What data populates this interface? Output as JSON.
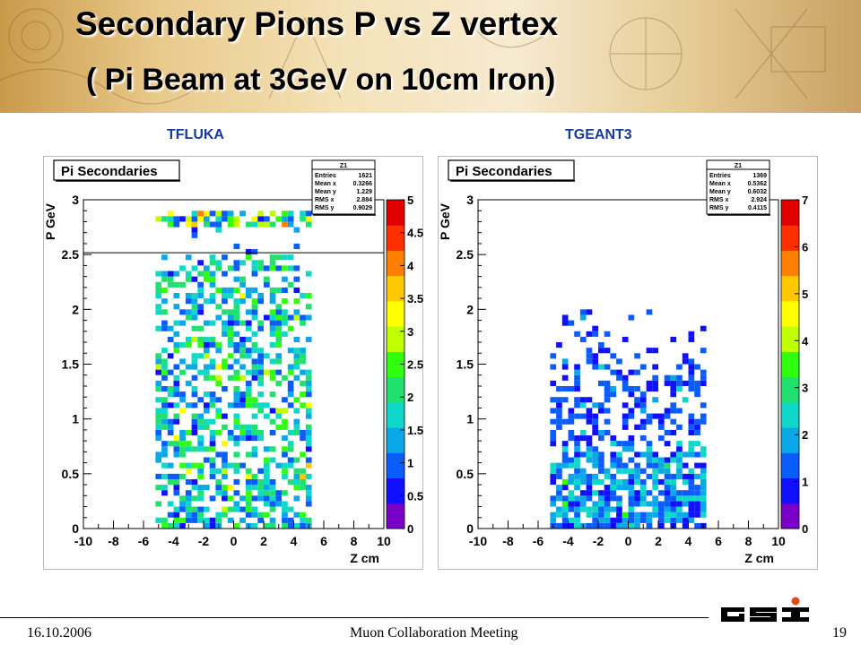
{
  "slide": {
    "title": "Secondary Pions  P vs Z vertex",
    "subtitle": "( Pi Beam at 3GeV on 10cm Iron)",
    "footer_date": "16.10.2006",
    "footer_center": "Muon Collaboration Meeting",
    "footer_page": "19",
    "logo_text": "GSI"
  },
  "chart_data": [
    {
      "type": "heatmap",
      "label": "TFLUKA",
      "title": "Pi Secondaries",
      "xlabel": "Z cm",
      "ylabel": "P GeV",
      "xlim": [
        -10,
        10
      ],
      "ylim": [
        0,
        3
      ],
      "x_ticks": [
        "-10",
        "-8",
        "-6",
        "-4",
        "-2",
        "0",
        "2",
        "4",
        "6",
        "8",
        "10"
      ],
      "y_ticks": [
        "0",
        "0.5",
        "1",
        "1.5",
        "2",
        "2.5",
        "3"
      ],
      "z_ticks": [
        "0",
        "0.5",
        "1",
        "1.5",
        "2",
        "2.5",
        "3",
        "3.5",
        "4",
        "4.5",
        "5"
      ],
      "zmax": 5,
      "stats": {
        "name": "Z1",
        "rows": [
          [
            "Entries",
            "1621"
          ],
          [
            "Mean x",
            "0.3266"
          ],
          [
            "Mean y",
            "1.229"
          ],
          [
            "RMS x",
            "2.884"
          ],
          [
            "RMS y",
            "0.9029"
          ]
        ]
      },
      "fill": {
        "xmin": -5,
        "xmax": 5,
        "ymax": 2.9,
        "band": [
          2.75,
          2.9
        ],
        "gap": [
          2.5,
          2.75
        ]
      }
    },
    {
      "type": "heatmap",
      "label": "TGEANT3",
      "title": "Pi Secondaries",
      "xlabel": "Z cm",
      "ylabel": "P GeV",
      "xlim": [
        -10,
        10
      ],
      "ylim": [
        0,
        3
      ],
      "x_ticks": [
        "-10",
        "-8",
        "-6",
        "-4",
        "-2",
        "0",
        "2",
        "4",
        "6",
        "8",
        "10"
      ],
      "y_ticks": [
        "0",
        "0.5",
        "1",
        "1.5",
        "2",
        "2.5",
        "3"
      ],
      "z_ticks": [
        "0",
        "1",
        "2",
        "3",
        "4",
        "5",
        "6",
        "7"
      ],
      "zmax": 7,
      "stats": {
        "name": "Z1",
        "rows": [
          [
            "Entries",
            "1369"
          ],
          [
            "Mean x",
            "0.5362"
          ],
          [
            "Mean y",
            "0.6032"
          ],
          [
            "RMS x",
            "2.924"
          ],
          [
            "RMS y",
            "0.4115"
          ]
        ]
      },
      "fill": {
        "xmin": -5,
        "xmax": 5,
        "ymax": 2.0
      }
    }
  ]
}
